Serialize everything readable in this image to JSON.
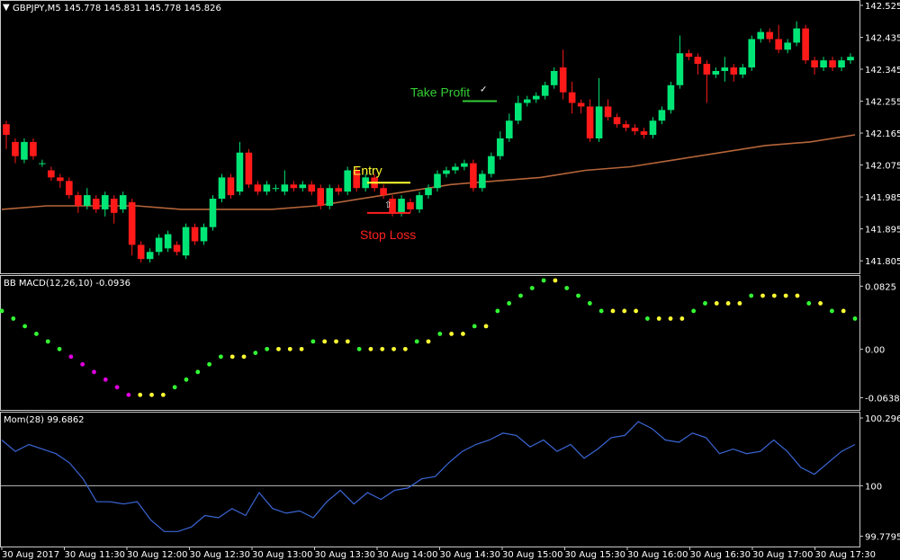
{
  "header": {
    "symbol_label": "GBPJPY,M5  145.778 145.831 145.778 145.826"
  },
  "colors": {
    "background": "#000000",
    "panel_border": "#c8c8c8",
    "bull": "#00e676",
    "bear": "#ff1a1a",
    "ma": "#b5653a",
    "macd_up": "#33ff33",
    "macd_down": "#e000e0",
    "macd_neutral": "#ffff33",
    "momentum": "#3b66d6",
    "entry": "#ffff33",
    "stop_loss": "#ff2020",
    "take_profit": "#33cc33"
  },
  "chart_data": [
    {
      "type": "candlestick",
      "title": "GBPJPY,M5",
      "legend": "GBPJPY,M5  145.778 145.831 145.778 145.826",
      "y_ticks": [
        "142.525",
        "142.435",
        "142.345",
        "142.255",
        "142.165",
        "142.075",
        "141.985",
        "141.895",
        "141.805"
      ],
      "ylim": [
        141.78,
        142.53
      ],
      "candles": [
        {
          "o": 142.19,
          "c": 142.16,
          "h": 142.2,
          "l": 142.12
        },
        {
          "o": 142.14,
          "c": 142.1,
          "h": 142.15,
          "l": 142.08
        },
        {
          "o": 142.09,
          "c": 142.14,
          "h": 142.15,
          "l": 142.08
        },
        {
          "o": 142.14,
          "c": 142.1,
          "h": 142.15,
          "l": 142.09
        },
        {
          "o": 142.08,
          "c": 142.08,
          "h": 142.09,
          "l": 142.07
        },
        {
          "o": 142.06,
          "c": 142.04,
          "h": 142.07,
          "l": 142.03
        },
        {
          "o": 142.04,
          "c": 142.03,
          "h": 142.05,
          "l": 142.01
        },
        {
          "o": 142.03,
          "c": 141.99,
          "h": 142.04,
          "l": 141.98
        },
        {
          "o": 141.99,
          "c": 141.96,
          "h": 142.0,
          "l": 141.94
        },
        {
          "o": 141.96,
          "c": 141.99,
          "h": 142.01,
          "l": 141.95
        },
        {
          "o": 141.98,
          "c": 141.95,
          "h": 141.99,
          "l": 141.94
        },
        {
          "o": 141.95,
          "c": 141.99,
          "h": 142.0,
          "l": 141.93
        },
        {
          "o": 141.98,
          "c": 141.94,
          "h": 141.99,
          "l": 141.91
        },
        {
          "o": 141.95,
          "c": 141.99,
          "h": 142.0,
          "l": 141.94
        },
        {
          "o": 141.97,
          "c": 141.85,
          "h": 141.98,
          "l": 141.82
        },
        {
          "o": 141.85,
          "c": 141.81,
          "h": 141.86,
          "l": 141.8
        },
        {
          "o": 141.81,
          "c": 141.83,
          "h": 141.84,
          "l": 141.8
        },
        {
          "o": 141.83,
          "c": 141.87,
          "h": 141.88,
          "l": 141.82
        },
        {
          "o": 141.84,
          "c": 141.88,
          "h": 141.89,
          "l": 141.83
        },
        {
          "o": 141.85,
          "c": 141.83,
          "h": 141.86,
          "l": 141.82
        },
        {
          "o": 141.82,
          "c": 141.9,
          "h": 141.91,
          "l": 141.81
        },
        {
          "o": 141.9,
          "c": 141.86,
          "h": 141.91,
          "l": 141.85
        },
        {
          "o": 141.86,
          "c": 141.9,
          "h": 141.91,
          "l": 141.85
        },
        {
          "o": 141.9,
          "c": 141.98,
          "h": 141.99,
          "l": 141.89
        },
        {
          "o": 141.98,
          "c": 142.04,
          "h": 142.05,
          "l": 141.97
        },
        {
          "o": 142.04,
          "c": 141.99,
          "h": 142.05,
          "l": 141.98
        },
        {
          "o": 142.0,
          "c": 142.11,
          "h": 142.14,
          "l": 141.99
        },
        {
          "o": 142.11,
          "c": 142.02,
          "h": 142.12,
          "l": 142.01
        },
        {
          "o": 142.02,
          "c": 142.0,
          "h": 142.03,
          "l": 141.99
        },
        {
          "o": 142.0,
          "c": 142.02,
          "h": 142.03,
          "l": 141.99
        },
        {
          "o": 142.01,
          "c": 142.01,
          "h": 142.02,
          "l": 142.0
        },
        {
          "o": 142.0,
          "c": 142.02,
          "h": 142.06,
          "l": 141.99
        },
        {
          "o": 142.02,
          "c": 142.01,
          "h": 142.03,
          "l": 142.0
        },
        {
          "o": 142.01,
          "c": 142.02,
          "h": 142.03,
          "l": 142.0
        },
        {
          "o": 142.02,
          "c": 142.0,
          "h": 142.03,
          "l": 141.99
        },
        {
          "o": 142.01,
          "c": 141.96,
          "h": 142.02,
          "l": 141.95
        },
        {
          "o": 141.96,
          "c": 142.01,
          "h": 142.02,
          "l": 141.95
        },
        {
          "o": 142.01,
          "c": 142.0,
          "h": 142.02,
          "l": 141.99
        },
        {
          "o": 142.0,
          "c": 142.06,
          "h": 142.07,
          "l": 141.99
        },
        {
          "o": 142.06,
          "c": 142.01,
          "h": 142.07,
          "l": 142.0
        },
        {
          "o": 142.01,
          "c": 142.04,
          "h": 142.05,
          "l": 142.0
        },
        {
          "o": 142.04,
          "c": 142.01,
          "h": 142.05,
          "l": 142.0
        },
        {
          "o": 142.01,
          "c": 141.99,
          "h": 142.02,
          "l": 141.98
        },
        {
          "o": 141.98,
          "c": 141.94,
          "h": 141.99,
          "l": 141.93
        },
        {
          "o": 141.94,
          "c": 141.98,
          "h": 141.99,
          "l": 141.93
        },
        {
          "o": 141.97,
          "c": 141.95,
          "h": 141.98,
          "l": 141.94
        },
        {
          "o": 141.95,
          "c": 141.99,
          "h": 142.0,
          "l": 141.94
        },
        {
          "o": 141.99,
          "c": 142.01,
          "h": 142.02,
          "l": 141.98
        },
        {
          "o": 142.01,
          "c": 142.05,
          "h": 142.06,
          "l": 142.0
        },
        {
          "o": 142.05,
          "c": 142.06,
          "h": 142.07,
          "l": 142.04
        },
        {
          "o": 142.06,
          "c": 142.07,
          "h": 142.08,
          "l": 142.05
        },
        {
          "o": 142.07,
          "c": 142.08,
          "h": 142.09,
          "l": 142.06
        },
        {
          "o": 142.08,
          "c": 142.01,
          "h": 142.09,
          "l": 142.0
        },
        {
          "o": 142.01,
          "c": 142.05,
          "h": 142.06,
          "l": 142.0
        },
        {
          "o": 142.05,
          "c": 142.1,
          "h": 142.11,
          "l": 142.04
        },
        {
          "o": 142.1,
          "c": 142.15,
          "h": 142.17,
          "l": 142.09
        },
        {
          "o": 142.15,
          "c": 142.2,
          "h": 142.22,
          "l": 142.14
        },
        {
          "o": 142.2,
          "c": 142.25,
          "h": 142.27,
          "l": 142.19
        },
        {
          "o": 142.25,
          "c": 142.26,
          "h": 142.27,
          "l": 142.24
        },
        {
          "o": 142.26,
          "c": 142.27,
          "h": 142.28,
          "l": 142.25
        },
        {
          "o": 142.27,
          "c": 142.3,
          "h": 142.31,
          "l": 142.26
        },
        {
          "o": 142.3,
          "c": 142.34,
          "h": 142.35,
          "l": 142.29
        },
        {
          "o": 142.35,
          "c": 142.28,
          "h": 142.4,
          "l": 142.26
        },
        {
          "o": 142.28,
          "c": 142.25,
          "h": 142.31,
          "l": 142.22
        },
        {
          "o": 142.25,
          "c": 142.24,
          "h": 142.26,
          "l": 142.22
        },
        {
          "o": 142.24,
          "c": 142.15,
          "h": 142.26,
          "l": 142.14
        },
        {
          "o": 142.15,
          "c": 142.24,
          "h": 142.32,
          "l": 142.14
        },
        {
          "o": 142.24,
          "c": 142.21,
          "h": 142.26,
          "l": 142.2
        },
        {
          "o": 142.21,
          "c": 142.19,
          "h": 142.22,
          "l": 142.18
        },
        {
          "o": 142.19,
          "c": 142.18,
          "h": 142.2,
          "l": 142.17
        },
        {
          "o": 142.18,
          "c": 142.17,
          "h": 142.19,
          "l": 142.16
        },
        {
          "o": 142.17,
          "c": 142.16,
          "h": 142.18,
          "l": 142.15
        },
        {
          "o": 142.16,
          "c": 142.2,
          "h": 142.21,
          "l": 142.15
        },
        {
          "o": 142.2,
          "c": 142.23,
          "h": 142.24,
          "l": 142.19
        },
        {
          "o": 142.23,
          "c": 142.3,
          "h": 142.31,
          "l": 142.22
        },
        {
          "o": 142.3,
          "c": 142.39,
          "h": 142.44,
          "l": 142.29
        },
        {
          "o": 142.39,
          "c": 142.38,
          "h": 142.4,
          "l": 142.37
        },
        {
          "o": 142.38,
          "c": 142.36,
          "h": 142.39,
          "l": 142.33
        },
        {
          "o": 142.36,
          "c": 142.33,
          "h": 142.37,
          "l": 142.25
        },
        {
          "o": 142.33,
          "c": 142.34,
          "h": 142.35,
          "l": 142.32
        },
        {
          "o": 142.34,
          "c": 142.35,
          "h": 142.38,
          "l": 142.31
        },
        {
          "o": 142.35,
          "c": 142.33,
          "h": 142.36,
          "l": 142.31
        },
        {
          "o": 142.33,
          "c": 142.35,
          "h": 142.36,
          "l": 142.32
        },
        {
          "o": 142.35,
          "c": 142.43,
          "h": 142.44,
          "l": 142.34
        },
        {
          "o": 142.43,
          "c": 142.45,
          "h": 142.46,
          "l": 142.42
        },
        {
          "o": 142.45,
          "c": 142.43,
          "h": 142.46,
          "l": 142.42
        },
        {
          "o": 142.43,
          "c": 142.4,
          "h": 142.47,
          "l": 142.39
        },
        {
          "o": 142.4,
          "c": 142.42,
          "h": 142.43,
          "l": 142.39
        },
        {
          "o": 142.42,
          "c": 142.46,
          "h": 142.48,
          "l": 142.41
        },
        {
          "o": 142.46,
          "c": 142.37,
          "h": 142.47,
          "l": 142.36
        },
        {
          "o": 142.37,
          "c": 142.35,
          "h": 142.38,
          "l": 142.33
        },
        {
          "o": 142.35,
          "c": 142.37,
          "h": 142.38,
          "l": 142.34
        },
        {
          "o": 142.37,
          "c": 142.35,
          "h": 142.38,
          "l": 142.34
        },
        {
          "o": 142.35,
          "c": 142.37,
          "h": 142.38,
          "l": 142.34
        },
        {
          "o": 142.37,
          "c": 142.38,
          "h": 142.39,
          "l": 142.36
        }
      ],
      "moving_average": [
        141.95,
        141.96,
        141.96,
        141.96,
        141.95,
        141.95,
        141.95,
        141.96,
        141.98,
        142.0,
        142.02,
        142.03,
        142.04,
        142.06,
        142.07,
        142.09,
        142.11,
        142.13,
        142.14,
        142.16
      ],
      "annotations": {
        "entry": "Entry",
        "stop_loss": "Stop Loss",
        "take_profit": "Take Profit",
        "take_profit_mark": "✓",
        "arrow_mark": "⇧"
      },
      "levels": {
        "entry": 142.025,
        "stop_loss": 141.94,
        "take_profit": 142.255
      }
    },
    {
      "type": "scatter",
      "title": "BB MACD(12,26,10) -0.0936",
      "y_ticks": [
        "0.0825",
        "0.00",
        "-0.0638"
      ],
      "ylim": [
        -0.075,
        0.09
      ],
      "values": [
        0.05,
        0.04,
        0.03,
        0.02,
        0.01,
        0.0,
        -0.01,
        -0.02,
        -0.03,
        -0.04,
        -0.05,
        -0.06,
        -0.06,
        -0.06,
        -0.06,
        -0.05,
        -0.04,
        -0.03,
        -0.02,
        -0.01,
        -0.01,
        -0.01,
        -0.005,
        0.0,
        0.0,
        0.0,
        0.0,
        0.01,
        0.01,
        0.01,
        0.01,
        0.0,
        0.0,
        0.0,
        0.0,
        0.0,
        0.01,
        0.01,
        0.02,
        0.02,
        0.02,
        0.03,
        0.03,
        0.05,
        0.06,
        0.07,
        0.08,
        0.09,
        0.09,
        0.08,
        0.07,
        0.06,
        0.05,
        0.05,
        0.05,
        0.05,
        0.04,
        0.04,
        0.04,
        0.04,
        0.05,
        0.06,
        0.06,
        0.06,
        0.06,
        0.07,
        0.07,
        0.07,
        0.07,
        0.07,
        0.06,
        0.06,
        0.05,
        0.05,
        0.04
      ]
    },
    {
      "type": "line",
      "title": "Mom(28) 99.6862",
      "y_ticks": [
        "100.296",
        "100",
        "99.7795"
      ],
      "ylim": [
        99.75,
        100.3
      ],
      "reference": 100,
      "values": [
        100.2,
        100.15,
        100.18,
        100.16,
        100.14,
        100.1,
        100.03,
        99.93,
        99.93,
        99.92,
        99.93,
        99.85,
        99.8,
        99.8,
        99.82,
        99.87,
        99.86,
        99.9,
        99.87,
        99.97,
        99.9,
        99.88,
        99.89,
        99.86,
        99.93,
        99.98,
        99.92,
        99.97,
        99.94,
        99.98,
        99.99,
        100.03,
        100.04,
        100.1,
        100.15,
        100.18,
        100.2,
        100.23,
        100.22,
        100.17,
        100.2,
        100.15,
        100.18,
        100.12,
        100.16,
        100.21,
        100.22,
        100.28,
        100.25,
        100.2,
        100.19,
        100.23,
        100.21,
        100.14,
        100.16,
        100.14,
        100.15,
        100.2,
        100.15,
        100.08,
        100.05,
        100.1,
        100.15,
        100.18
      ]
    }
  ],
  "x_axis": {
    "ticks": [
      "30 Aug 2017",
      "30 Aug 11:30",
      "30 Aug 12:00",
      "30 Aug 12:30",
      "30 Aug 13:00",
      "30 Aug 13:30",
      "30 Aug 14:00",
      "30 Aug 14:30",
      "30 Aug 15:00",
      "30 Aug 15:30",
      "30 Aug 16:00",
      "30 Aug 16:30",
      "30 Aug 17:00",
      "30 Aug 17:30"
    ]
  }
}
